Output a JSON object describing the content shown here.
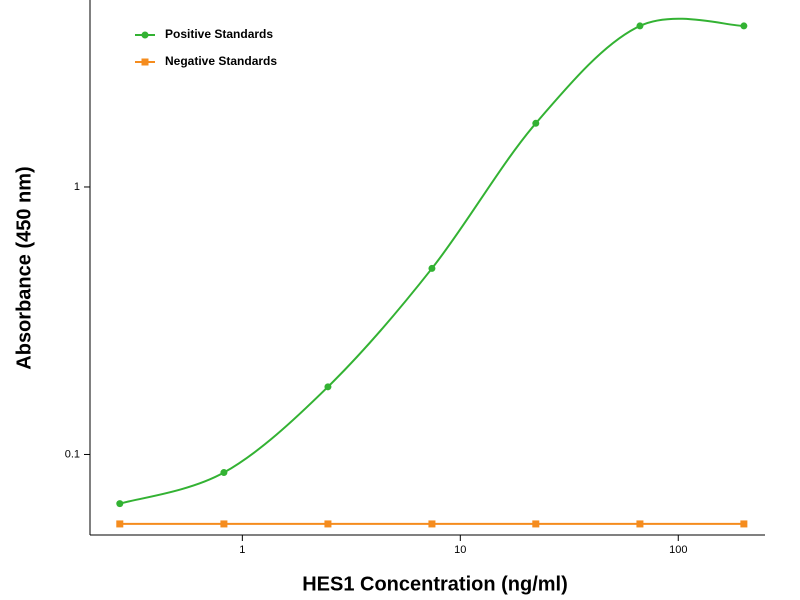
{
  "chart_data": {
    "type": "line",
    "x_label": "HES1 Concentration (ng/ml)",
    "y_label": "Absorbance (450 nm)",
    "x": [
      0.274,
      0.823,
      2.47,
      7.41,
      22.2,
      66.7,
      200
    ],
    "series": [
      {
        "name": "Positive Standards",
        "color": "#33b233",
        "marker": "circle",
        "values": [
          0.0655,
          0.0856,
          0.179,
          0.496,
          1.73,
          4.0,
          4.0
        ]
      },
      {
        "name": "Negative Standards",
        "color": "#f58c1e",
        "marker": "square",
        "values": [
          0.055,
          0.055,
          0.055,
          0.055,
          0.055,
          0.055,
          0.055
        ]
      }
    ],
    "xscale": "log",
    "yscale": "log",
    "xlim": [
      0.2,
      250
    ],
    "ylim": [
      0.05,
      5
    ],
    "xticks": [
      1,
      10,
      100
    ],
    "yticks": [
      0.1,
      1
    ],
    "grid": false,
    "legend": "upper left",
    "smooth": true
  }
}
